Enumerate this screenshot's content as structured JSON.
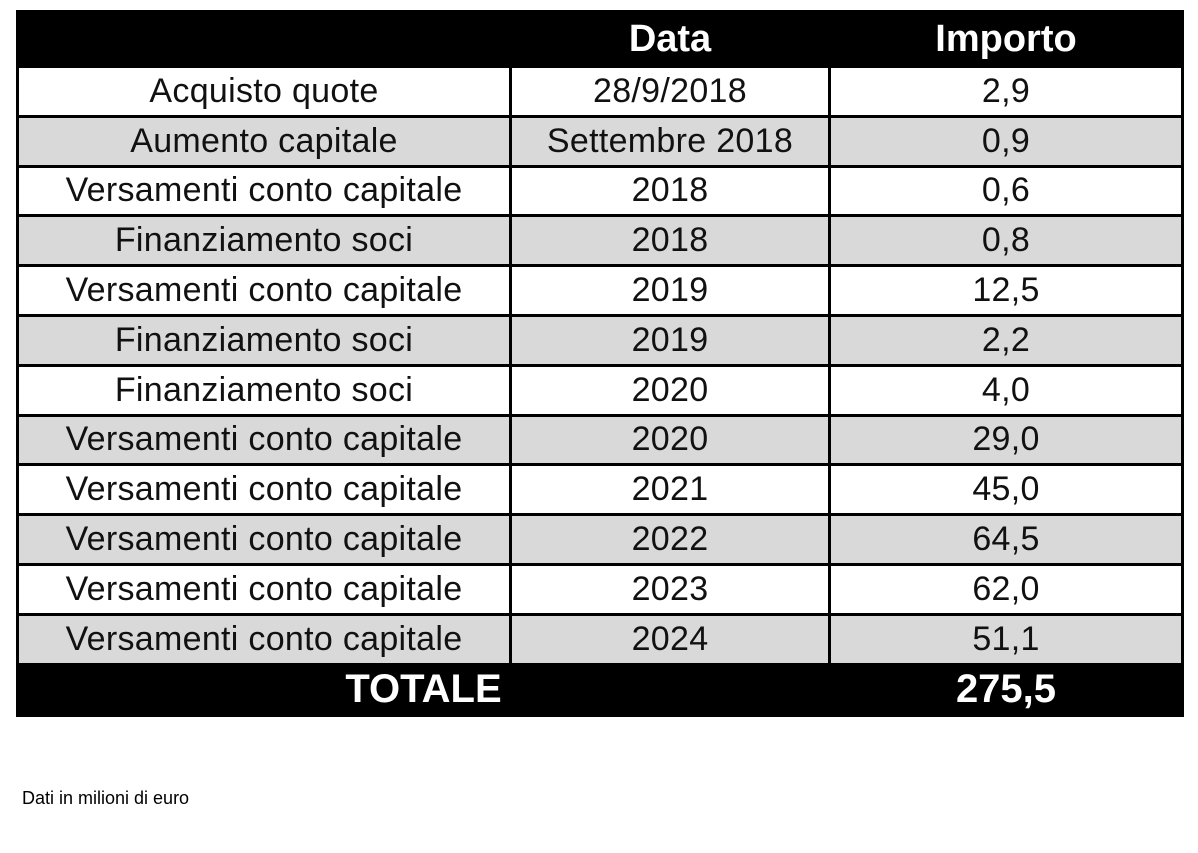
{
  "chart_data": {
    "type": "table",
    "columns": [
      "",
      "Data",
      "Importo"
    ],
    "rows": [
      {
        "voce": "Acquisto quote",
        "data": "28/9/2018",
        "importo": "2,9",
        "importo_value": 2.9
      },
      {
        "voce": "Aumento capitale",
        "data": "Settembre 2018",
        "importo": "0,9",
        "importo_value": 0.9
      },
      {
        "voce": "Versamenti conto capitale",
        "data": "2018",
        "importo": "0,6",
        "importo_value": 0.6
      },
      {
        "voce": "Finanziamento soci",
        "data": "2018",
        "importo": "0,8",
        "importo_value": 0.8
      },
      {
        "voce": "Versamenti conto capitale",
        "data": "2019",
        "importo": "12,5",
        "importo_value": 12.5
      },
      {
        "voce": "Finanziamento soci",
        "data": "2019",
        "importo": "2,2",
        "importo_value": 2.2
      },
      {
        "voce": "Finanziamento soci",
        "data": "2020",
        "importo": "4,0",
        "importo_value": 4.0
      },
      {
        "voce": "Versamenti conto capitale",
        "data": "2020",
        "importo": "29,0",
        "importo_value": 29.0
      },
      {
        "voce": "Versamenti conto capitale",
        "data": "2021",
        "importo": "45,0",
        "importo_value": 45.0
      },
      {
        "voce": "Versamenti conto capitale",
        "data": "2022",
        "importo": "64,5",
        "importo_value": 64.5
      },
      {
        "voce": "Versamenti conto capitale",
        "data": "2023",
        "importo": "62,0",
        "importo_value": 62.0
      },
      {
        "voce": "Versamenti conto capitale",
        "data": "2024",
        "importo": "51,1",
        "importo_value": 51.1
      }
    ],
    "total": {
      "label": "TOTALE",
      "display": "275,5",
      "value": 275.5
    },
    "footnote": "Dati in milioni di euro",
    "layout_hints": {
      "striped": true,
      "header_position": "top",
      "total_position": "bottom"
    },
    "colors": {
      "header_bg": "#000000",
      "header_text": "#ffffff",
      "row_bg": "#ffffff",
      "alt_row_bg": "#d9d9d9",
      "border": "#000000",
      "text": "#111111"
    }
  }
}
